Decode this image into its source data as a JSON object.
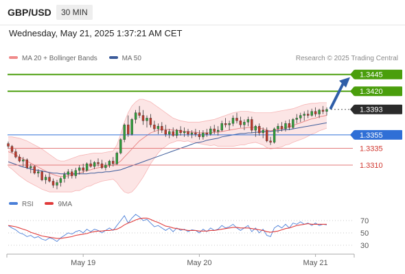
{
  "header": {
    "symbol": "GBP/USD",
    "timeframe": "30 MIN",
    "datetime": "Wednesday, May 21, 2025 1:37:21 AM CET",
    "credit": "Research © 2025 Trading Central"
  },
  "colors": {
    "up_candle": "#2f9e3a",
    "down_candle": "#c0392b",
    "target_line": "#4a9e0c",
    "pivot_line": "#2f6fd6",
    "support_line": "#e37a7a",
    "bollinger_fill": "#fbdede",
    "ma50": "#3b5b9a",
    "arrow": "#2f5ea8",
    "rsi": "#4a7fd8",
    "rsi_ma": "#e03a3a"
  },
  "legend": [
    {
      "label": "MA 20 + Bollinger Bands",
      "color": "#f08a8a"
    },
    {
      "label": "MA 50",
      "color": "#3b5b9a"
    }
  ],
  "levels": [
    {
      "value": 1.3445,
      "label": "1.3445",
      "kind": "target"
    },
    {
      "value": 1.342,
      "label": "1.3420",
      "kind": "target"
    },
    {
      "value": 1.3393,
      "label": "1.3393",
      "kind": "current"
    },
    {
      "value": 1.3355,
      "label": "1.3355",
      "kind": "pivot"
    },
    {
      "value": 1.3335,
      "label": "1.3335",
      "kind": "support"
    },
    {
      "value": 1.331,
      "label": "1.3310",
      "kind": "support"
    }
  ],
  "rsi_legend": [
    {
      "label": "RSI",
      "color": "#4a7fd8"
    },
    {
      "label": "9MA",
      "color": "#e03a3a"
    }
  ],
  "chart_data": [
    {
      "type": "candlestick",
      "series": [
        {
          "name": "GBP/USD",
          "points": [
            [
              1.3342,
              1.3345,
              1.3335,
              1.3338
            ],
            [
              1.3338,
              1.334,
              1.3328,
              1.333
            ],
            [
              1.333,
              1.3334,
              1.332,
              1.3322
            ],
            [
              1.3322,
              1.3326,
              1.3314,
              1.3316
            ],
            [
              1.3316,
              1.3322,
              1.3308,
              1.3318
            ],
            [
              1.3318,
              1.332,
              1.3304,
              1.3306
            ],
            [
              1.3306,
              1.3312,
              1.3298,
              1.3308
            ],
            [
              1.3308,
              1.331,
              1.3296,
              1.3298
            ],
            [
              1.3298,
              1.3304,
              1.3292,
              1.33
            ],
            [
              1.33,
              1.3302,
              1.3286,
              1.3288
            ],
            [
              1.3288,
              1.3296,
              1.3282,
              1.3292
            ],
            [
              1.3292,
              1.3298,
              1.3284,
              1.3286
            ],
            [
              1.3286,
              1.329,
              1.3276,
              1.328
            ],
            [
              1.328,
              1.3288,
              1.3274,
              1.3284
            ],
            [
              1.3284,
              1.3292,
              1.3278,
              1.329
            ],
            [
              1.329,
              1.33,
              1.3284,
              1.3296
            ],
            [
              1.3296,
              1.3304,
              1.329,
              1.33
            ],
            [
              1.33,
              1.3304,
              1.329,
              1.3294
            ],
            [
              1.3294,
              1.3306,
              1.329,
              1.3302
            ],
            [
              1.3302,
              1.331,
              1.3296,
              1.3306
            ],
            [
              1.3306,
              1.3312,
              1.3298,
              1.3302
            ],
            [
              1.3302,
              1.3314,
              1.33,
              1.3312
            ],
            [
              1.3312,
              1.3318,
              1.3306,
              1.3308
            ],
            [
              1.3308,
              1.3316,
              1.3304,
              1.3314
            ],
            [
              1.3314,
              1.332,
              1.3308,
              1.3312
            ],
            [
              1.3312,
              1.3318,
              1.3304,
              1.3306
            ],
            [
              1.3306,
              1.3314,
              1.3302,
              1.331
            ],
            [
              1.331,
              1.3318,
              1.3306,
              1.3316
            ],
            [
              1.3316,
              1.3322,
              1.3308,
              1.3312
            ],
            [
              1.3312,
              1.333,
              1.331,
              1.3328
            ],
            [
              1.3328,
              1.335,
              1.3326,
              1.3348
            ],
            [
              1.3348,
              1.3372,
              1.3344,
              1.337
            ],
            [
              1.337,
              1.3384,
              1.3352,
              1.3356
            ],
            [
              1.3356,
              1.338,
              1.3354,
              1.3378
            ],
            [
              1.3378,
              1.3392,
              1.3372,
              1.3388
            ],
            [
              1.3388,
              1.3398,
              1.338,
              1.3384
            ],
            [
              1.3384,
              1.3392,
              1.337,
              1.3376
            ],
            [
              1.3376,
              1.3384,
              1.3366,
              1.338
            ],
            [
              1.338,
              1.3386,
              1.3366,
              1.337
            ],
            [
              1.337,
              1.3376,
              1.336,
              1.3364
            ],
            [
              1.3364,
              1.3372,
              1.3356,
              1.3368
            ],
            [
              1.3368,
              1.3374,
              1.3358,
              1.3362
            ],
            [
              1.3362,
              1.337,
              1.3352,
              1.3356
            ],
            [
              1.3356,
              1.3364,
              1.335,
              1.336
            ],
            [
              1.336,
              1.3366,
              1.3352,
              1.3354
            ],
            [
              1.3354,
              1.3364,
              1.335,
              1.3362
            ],
            [
              1.3362,
              1.3368,
              1.3354,
              1.3358
            ],
            [
              1.3358,
              1.3366,
              1.3352,
              1.336
            ],
            [
              1.336,
              1.3364,
              1.3352,
              1.3356
            ],
            [
              1.3356,
              1.3362,
              1.335,
              1.3358
            ],
            [
              1.3358,
              1.3364,
              1.3352,
              1.3356
            ],
            [
              1.3356,
              1.3362,
              1.3348,
              1.3352
            ],
            [
              1.3352,
              1.3362,
              1.3348,
              1.3358
            ],
            [
              1.3358,
              1.3364,
              1.3352,
              1.3356
            ],
            [
              1.3356,
              1.3368,
              1.3354,
              1.3364
            ],
            [
              1.3364,
              1.337,
              1.3356,
              1.336
            ],
            [
              1.336,
              1.3368,
              1.3354,
              1.3362
            ],
            [
              1.3362,
              1.3376,
              1.336,
              1.3372
            ],
            [
              1.3372,
              1.338,
              1.3366,
              1.337
            ],
            [
              1.337,
              1.3376,
              1.3362,
              1.3372
            ],
            [
              1.3372,
              1.3384,
              1.3368,
              1.338
            ],
            [
              1.338,
              1.3388,
              1.3372,
              1.3376
            ],
            [
              1.3376,
              1.3382,
              1.3366,
              1.337
            ],
            [
              1.337,
              1.3378,
              1.3362,
              1.3374
            ],
            [
              1.3374,
              1.3382,
              1.3368,
              1.3378
            ],
            [
              1.3378,
              1.3382,
              1.3358,
              1.3362
            ],
            [
              1.3362,
              1.337,
              1.3352,
              1.3368
            ],
            [
              1.3368,
              1.3372,
              1.3354,
              1.3358
            ],
            [
              1.3358,
              1.3366,
              1.335,
              1.3362
            ],
            [
              1.3362,
              1.3366,
              1.3344,
              1.3346
            ],
            [
              1.3346,
              1.3352,
              1.334,
              1.3344
            ],
            [
              1.3344,
              1.3366,
              1.3342,
              1.3364
            ],
            [
              1.3364,
              1.3372,
              1.3358,
              1.3368
            ],
            [
              1.3368,
              1.3374,
              1.336,
              1.3364
            ],
            [
              1.3364,
              1.3376,
              1.336,
              1.3372
            ],
            [
              1.3372,
              1.3378,
              1.3362,
              1.3366
            ],
            [
              1.3366,
              1.338,
              1.3364,
              1.3378
            ],
            [
              1.3378,
              1.3386,
              1.3372,
              1.338
            ],
            [
              1.338,
              1.3388,
              1.3374,
              1.3384
            ],
            [
              1.3384,
              1.339,
              1.3376,
              1.3386
            ],
            [
              1.3386,
              1.3392,
              1.338,
              1.3384
            ],
            [
              1.3384,
              1.3394,
              1.3382,
              1.339
            ],
            [
              1.339,
              1.3396,
              1.3382,
              1.3386
            ],
            [
              1.3386,
              1.3394,
              1.338,
              1.3392
            ],
            [
              1.3392,
              1.3398,
              1.3386,
              1.339
            ],
            [
              1.339,
              1.3396,
              1.3384,
              1.3393
            ]
          ]
        }
      ],
      "x_labels": [
        {
          "label": "May 19",
          "index": 20
        },
        {
          "label": "May 20",
          "index": 51
        },
        {
          "label": "May 21",
          "index": 82
        }
      ],
      "ylim": [
        1.326,
        1.346
      ]
    },
    {
      "type": "line",
      "series": [
        {
          "name": "RSI",
          "values": [
            62,
            58,
            55,
            50,
            48,
            44,
            46,
            42,
            44,
            40,
            38,
            42,
            40,
            36,
            42,
            46,
            50,
            48,
            52,
            54,
            50,
            56,
            52,
            56,
            54,
            50,
            54,
            58,
            54,
            62,
            70,
            78,
            66,
            74,
            80,
            76,
            70,
            72,
            66,
            60,
            62,
            58,
            54,
            58,
            52,
            58,
            54,
            56,
            52,
            55,
            54,
            50,
            56,
            52,
            58,
            54,
            56,
            62,
            58,
            60,
            64,
            58,
            54,
            58,
            62,
            52,
            58,
            50,
            56,
            46,
            44,
            58,
            62,
            58,
            64,
            58,
            66,
            64,
            68,
            64,
            66,
            62,
            66,
            62,
            64,
            63
          ]
        },
        {
          "name": "9MA",
          "values": [
            62,
            61,
            60,
            58,
            56,
            54,
            51,
            49,
            47,
            45,
            44,
            43,
            42,
            41,
            41,
            42,
            43,
            44,
            46,
            47,
            48,
            49,
            51,
            52,
            53,
            53,
            54,
            54,
            55,
            56,
            59,
            63,
            66,
            68,
            71,
            73,
            74,
            74,
            72,
            69,
            67,
            64,
            61,
            60,
            58,
            57,
            56,
            55,
            54,
            54,
            54,
            53,
            53,
            53,
            54,
            54,
            55,
            56,
            57,
            58,
            59,
            59,
            58,
            58,
            58,
            57,
            56,
            55,
            54,
            52,
            51,
            52,
            53,
            55,
            57,
            58,
            60,
            62,
            63,
            64,
            65,
            64,
            64,
            64,
            64,
            64
          ]
        }
      ],
      "levels": [
        70,
        50,
        30
      ]
    }
  ],
  "bands": {
    "ma20": [
      1.333,
      1.3328,
      1.3325,
      1.3322,
      1.3319,
      1.3316,
      1.3313,
      1.331,
      1.3307,
      1.3304,
      1.3301,
      1.3298,
      1.3296,
      1.3294,
      1.3293,
      1.3293,
      1.3294,
      1.3295,
      1.3297,
      1.3298,
      1.33,
      1.3302,
      1.3303,
      1.3305,
      1.3306,
      1.3307,
      1.3308,
      1.3309,
      1.331,
      1.3312,
      1.3316,
      1.3322,
      1.3328,
      1.3334,
      1.334,
      1.3346,
      1.335,
      1.3354,
      1.3358,
      1.336,
      1.3362,
      1.3363,
      1.3363,
      1.3363,
      1.3362,
      1.3362,
      1.3361,
      1.336,
      1.336,
      1.3359,
      1.3359,
      1.3358,
      1.3358,
      1.3358,
      1.3358,
      1.3359,
      1.3359,
      1.336,
      1.3361,
      1.3362,
      1.3363,
      1.3364,
      1.3365,
      1.3365,
      1.3366,
      1.3366,
      1.3366,
      1.3365,
      1.3364,
      1.3362,
      1.3361,
      1.3362,
      1.3363,
      1.3364,
      1.3366,
      1.3367,
      1.3369,
      1.3371,
      1.3373,
      1.3375,
      1.3377,
      1.3379,
      1.338,
      1.3382,
      1.3383,
      1.3384
    ],
    "upper": [
      1.3352,
      1.3352,
      1.3351,
      1.335,
      1.3348,
      1.3346,
      1.3343,
      1.334,
      1.3337,
      1.3334,
      1.333,
      1.3326,
      1.3322,
      1.3318,
      1.3316,
      1.3316,
      1.3318,
      1.332,
      1.3322,
      1.3324,
      1.3325,
      1.3326,
      1.3327,
      1.3328,
      1.3328,
      1.3328,
      1.3329,
      1.333,
      1.3331,
      1.334,
      1.3356,
      1.3374,
      1.3388,
      1.3398,
      1.3404,
      1.3408,
      1.3408,
      1.3406,
      1.3404,
      1.34,
      1.3396,
      1.3392,
      1.3388,
      1.3384,
      1.338,
      1.3378,
      1.3376,
      1.3375,
      1.3374,
      1.3374,
      1.3374,
      1.3374,
      1.3375,
      1.3376,
      1.3377,
      1.3378,
      1.338,
      1.3382,
      1.3384,
      1.3386,
      1.3388,
      1.3389,
      1.339,
      1.339,
      1.339,
      1.3389,
      1.3388,
      1.3388,
      1.3388,
      1.3388,
      1.3388,
      1.3389,
      1.339,
      1.3391,
      1.3392,
      1.3393,
      1.3394,
      1.3396,
      1.3398,
      1.34,
      1.3401,
      1.3402,
      1.3402,
      1.3403,
      1.3403,
      1.3403
    ],
    "lower": [
      1.3308,
      1.3304,
      1.3299,
      1.3294,
      1.329,
      1.3286,
      1.3283,
      1.328,
      1.3277,
      1.3274,
      1.3272,
      1.327,
      1.327,
      1.327,
      1.327,
      1.327,
      1.327,
      1.327,
      1.3272,
      1.3272,
      1.3275,
      1.3278,
      1.3279,
      1.3282,
      1.3284,
      1.3286,
      1.3287,
      1.3288,
      1.3289,
      1.3284,
      1.3276,
      1.327,
      1.3268,
      1.327,
      1.3276,
      1.3284,
      1.3292,
      1.3302,
      1.3312,
      1.332,
      1.3328,
      1.3334,
      1.3338,
      1.3342,
      1.3344,
      1.3346,
      1.3346,
      1.3345,
      1.3346,
      1.3344,
      1.3344,
      1.3342,
      1.3341,
      1.334,
      1.3339,
      1.334,
      1.3338,
      1.3338,
      1.3338,
      1.3338,
      1.3338,
      1.3339,
      1.334,
      1.334,
      1.3342,
      1.3343,
      1.3344,
      1.3342,
      1.334,
      1.3336,
      1.3334,
      1.3335,
      1.3336,
      1.3337,
      1.334,
      1.3341,
      1.3344,
      1.3346,
      1.3348,
      1.335,
      1.3353,
      1.3356,
      1.3358,
      1.3361,
      1.3363,
      1.3365
    ],
    "ma50": [
      1.3315,
      1.3313,
      1.3311,
      1.3309,
      1.3307,
      1.3306,
      1.3304,
      1.3303,
      1.3302,
      1.3301,
      1.33,
      1.3299,
      1.3298,
      1.3298,
      1.3297,
      1.3297,
      1.3297,
      1.3297,
      1.3297,
      1.3297,
      1.3297,
      1.3297,
      1.3298,
      1.3298,
      1.3299,
      1.3299,
      1.33,
      1.33,
      1.3301,
      1.3302,
      1.3303,
      1.3305,
      1.3307,
      1.3309,
      1.3311,
      1.3313,
      1.3315,
      1.3317,
      1.3319,
      1.3321,
      1.3323,
      1.3325,
      1.3327,
      1.3329,
      1.3331,
      1.3333,
      1.3335,
      1.3337,
      1.3339,
      1.3341,
      1.3343,
      1.3344,
      1.3345,
      1.3347,
      1.3348,
      1.3349,
      1.335,
      1.3352,
      1.3353,
      1.3354,
      1.3355,
      1.3356,
      1.3357,
      1.3357,
      1.3358,
      1.3358,
      1.3359,
      1.3359,
      1.336,
      1.336,
      1.336,
      1.3361,
      1.3361,
      1.3362,
      1.3363,
      1.3363,
      1.3364,
      1.3365,
      1.3366,
      1.3367,
      1.3368,
      1.3369,
      1.337,
      1.3371,
      1.3372,
      1.3373
    ]
  }
}
